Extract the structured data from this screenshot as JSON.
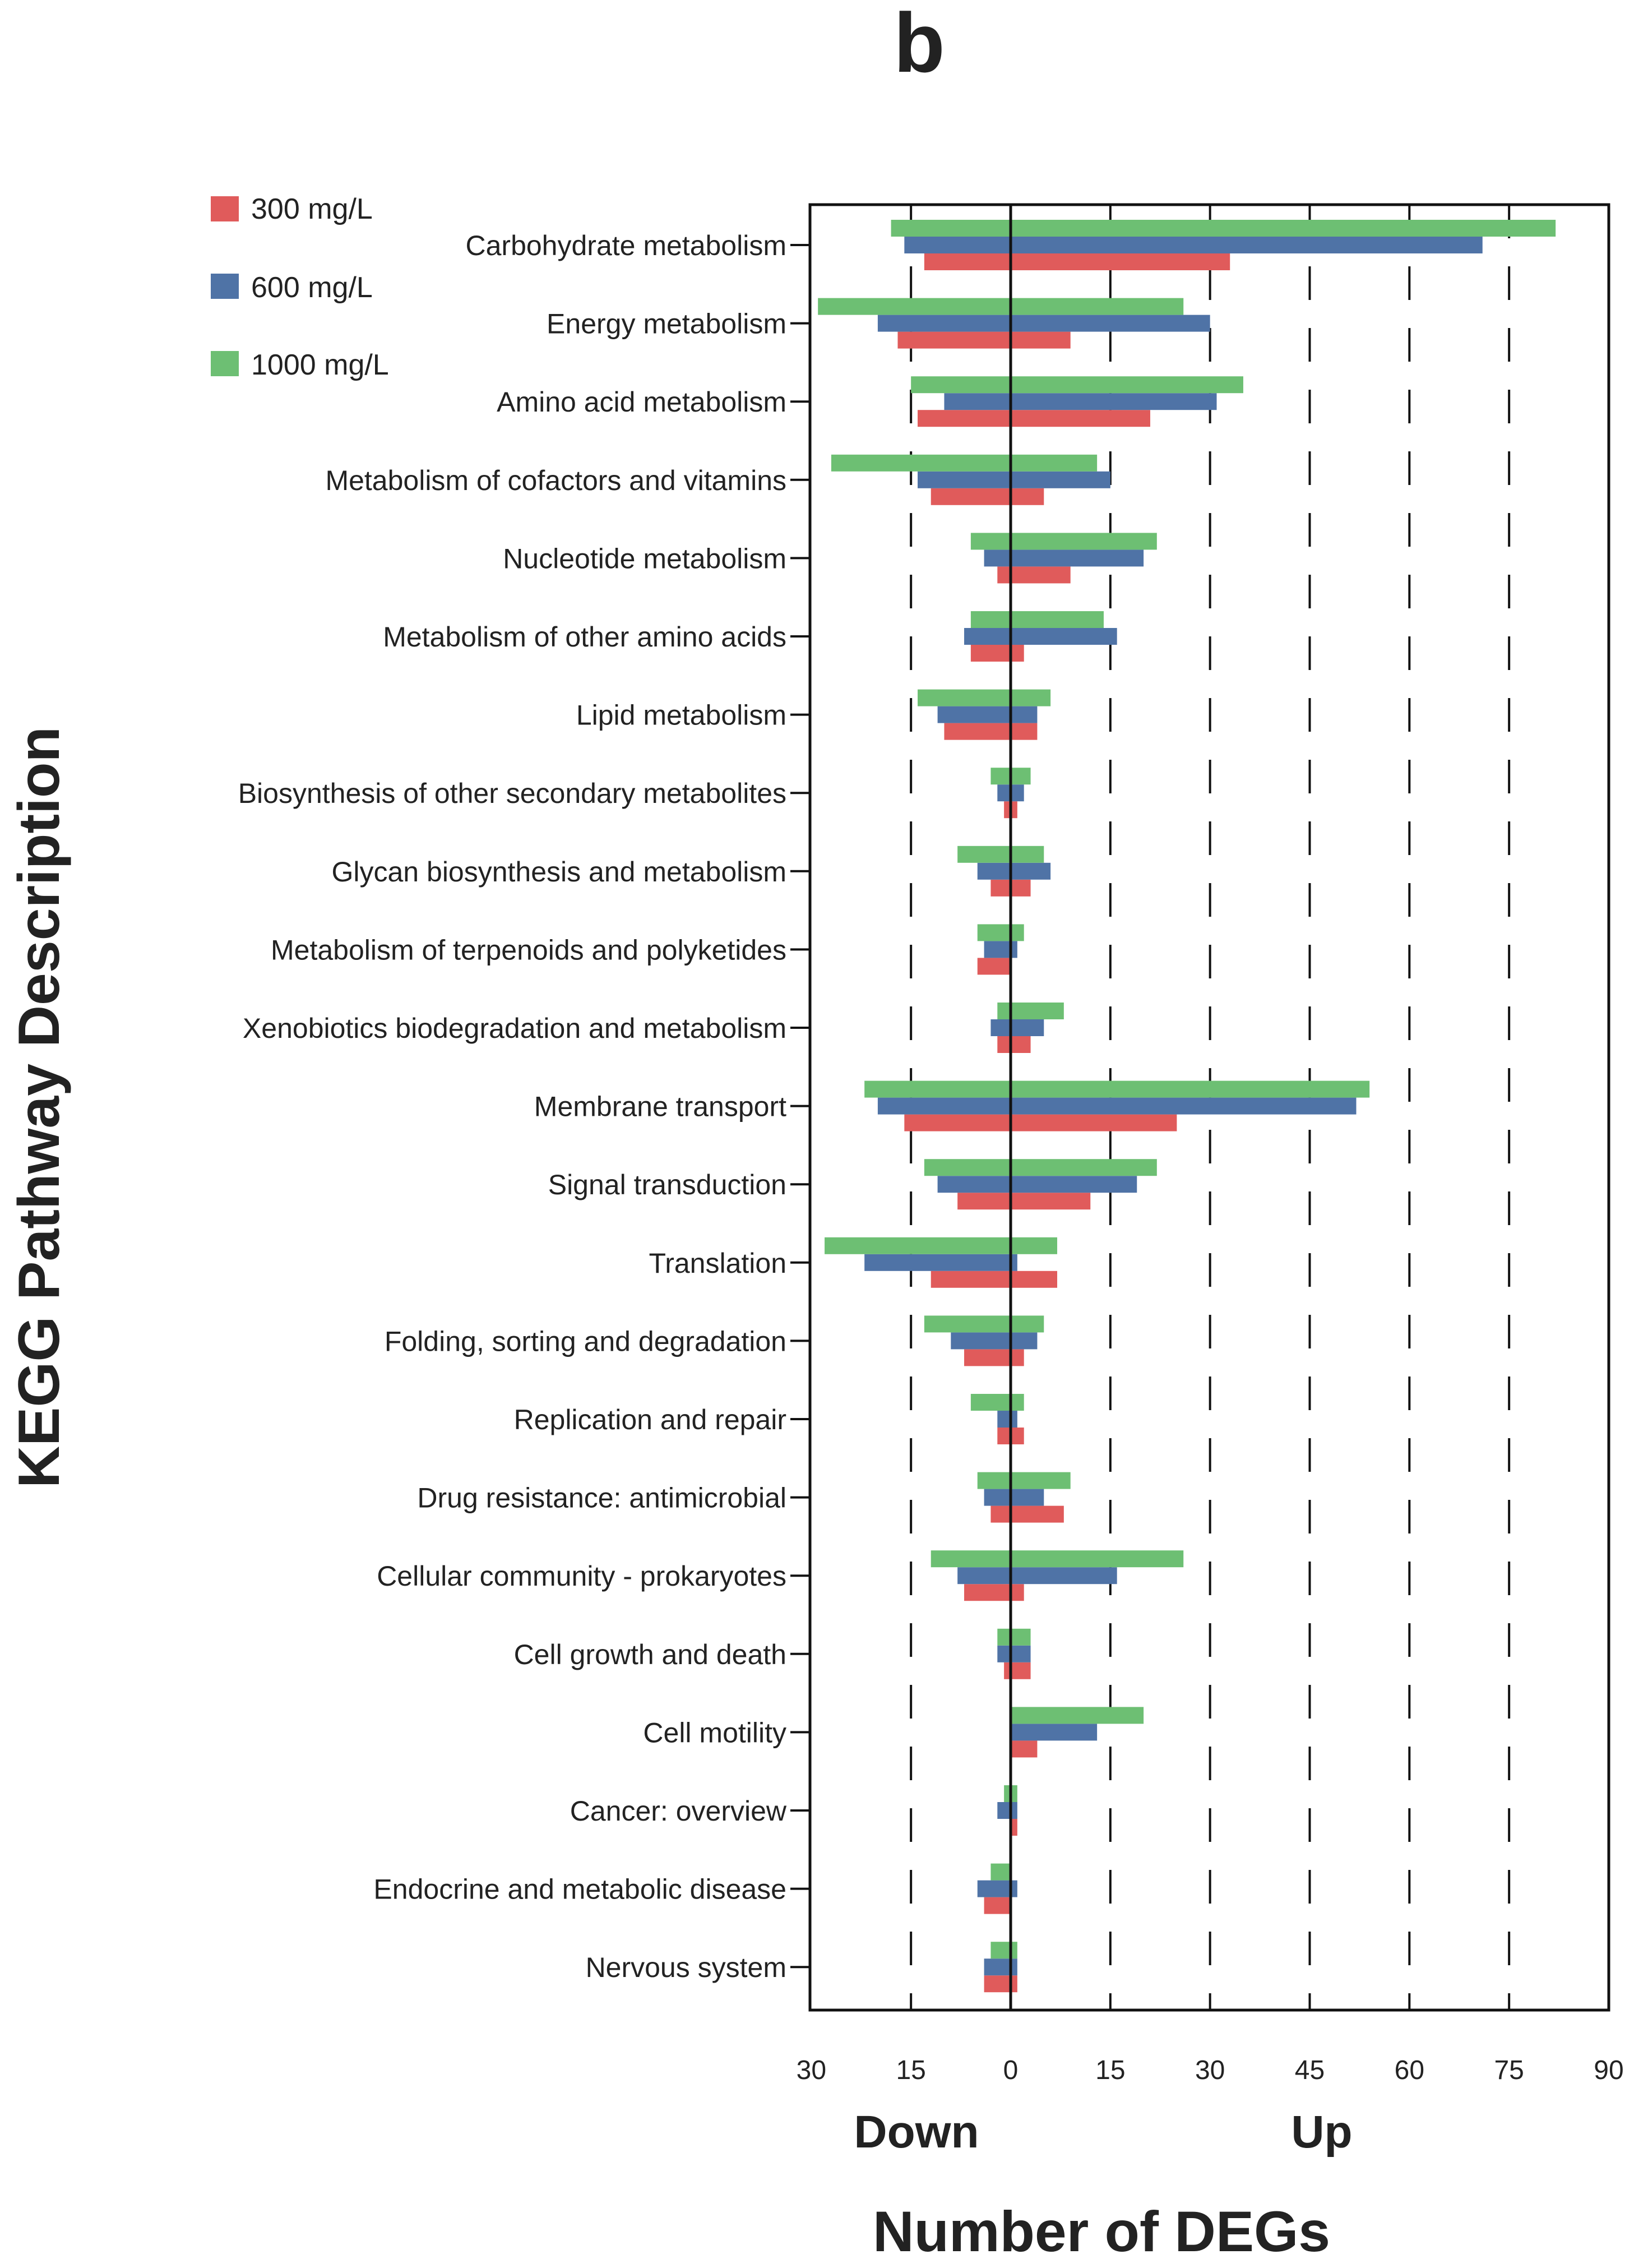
{
  "chart_data": {
    "type": "bar",
    "orientation": "horizontal-diverging",
    "panel_label": "b",
    "xlabel": "Number of DEGs",
    "ylabel": "KEGG Pathway Description",
    "down_label": "Down",
    "up_label": "Up",
    "x_tick_labels": [
      "30",
      "15",
      "0",
      "15",
      "30",
      "45",
      "60",
      "75",
      "90"
    ],
    "x_tick_values": [
      -30,
      -15,
      0,
      15,
      30,
      45,
      60,
      75,
      90
    ],
    "xlim": [
      -30,
      90
    ],
    "gridlines_at": [
      -15,
      15,
      30,
      45,
      60,
      75
    ],
    "legend_position": "top-left",
    "categories": [
      "Carbohydrate metabolism",
      "Energy metabolism",
      "Amino acid metabolism",
      "Metabolism of cofactors and vitamins",
      "Nucleotide metabolism",
      "Metabolism of other amino acids",
      "Lipid metabolism",
      "Biosynthesis of other secondary metabolites",
      "Glycan biosynthesis and metabolism",
      "Metabolism of terpenoids and polyketides",
      "Xenobiotics biodegradation and metabolism",
      "Membrane transport",
      "Signal transduction",
      "Translation",
      "Folding, sorting and degradation",
      "Replication and repair",
      "Drug resistance: antimicrobial",
      "Cellular community - prokaryotes",
      "Cell growth and death",
      "Cell motility",
      "Cancer: overview",
      "Endocrine and metabolic disease",
      "Nervous system"
    ],
    "series": [
      {
        "name": "300 mg/L",
        "color": "#e05b5b",
        "down": [
          13,
          17,
          14,
          12,
          2,
          6,
          10,
          1,
          3,
          5,
          2,
          16,
          8,
          12,
          7,
          2,
          3,
          7,
          1,
          0,
          0,
          4,
          4
        ],
        "up": [
          33,
          9,
          21,
          5,
          9,
          2,
          4,
          1,
          3,
          0,
          3,
          25,
          12,
          7,
          2,
          2,
          8,
          2,
          3,
          4,
          1,
          0,
          1
        ]
      },
      {
        "name": "600 mg/L",
        "color": "#4f73a6",
        "down": [
          16,
          20,
          10,
          14,
          4,
          7,
          11,
          2,
          5,
          4,
          3,
          20,
          11,
          22,
          9,
          2,
          4,
          8,
          2,
          0,
          2,
          5,
          4
        ],
        "up": [
          71,
          30,
          31,
          15,
          20,
          16,
          4,
          2,
          6,
          1,
          5,
          52,
          19,
          1,
          4,
          1,
          5,
          16,
          3,
          13,
          1,
          1,
          1
        ]
      },
      {
        "name": "1000 mg/L",
        "color": "#6dbf73",
        "down": [
          18,
          29,
          15,
          27,
          6,
          6,
          14,
          3,
          8,
          5,
          2,
          22,
          13,
          28,
          13,
          6,
          5,
          12,
          2,
          0,
          1,
          3,
          3
        ],
        "up": [
          82,
          26,
          35,
          13,
          22,
          14,
          6,
          3,
          5,
          2,
          8,
          54,
          22,
          7,
          5,
          2,
          9,
          26,
          3,
          20,
          1,
          0,
          1
        ]
      }
    ]
  }
}
